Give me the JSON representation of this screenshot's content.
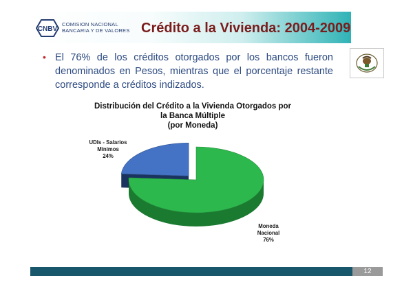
{
  "header": {
    "logo_text": "CNBV",
    "org_line1": "COMISION NACIONAL",
    "org_line2": "BANCARIA Y DE VALORES",
    "title": "Crédito a la Vivienda: 2004-2009"
  },
  "bullet": {
    "text": "El 76% de los créditos otorgados por los bancos fueron denominados en Pesos, mientras que el porcentaje restante corresponde a créditos indizados."
  },
  "chart_data": {
    "type": "pie",
    "title_line1": "Distribución del Crédito a la Vivienda Otorgados por",
    "title_line2": "la Banca Múltiple",
    "title_line3": "(por Moneda)",
    "slices": [
      {
        "label": "UDIs - Salarios Mínimos",
        "value": 24,
        "value_label": "24%",
        "color": "#4472c4"
      },
      {
        "label": "Moneda Nacional",
        "value": 76,
        "value_label": "76%",
        "color": "#2db84d"
      }
    ],
    "three_d": true,
    "exploded": true
  },
  "labels": {
    "udis_line1": "UDIs - Salarios",
    "udis_line2": "Mínimos",
    "udis_pct": "24%",
    "mn_line1": "Moneda",
    "mn_line2": "Nacional",
    "mn_pct": "76%"
  },
  "footer": {
    "page_number": "12",
    "bar_color": "#17566b"
  },
  "icons": {
    "logo": "cnbv-logo-icon",
    "seal": "mexican-coat-of-arms-icon"
  }
}
